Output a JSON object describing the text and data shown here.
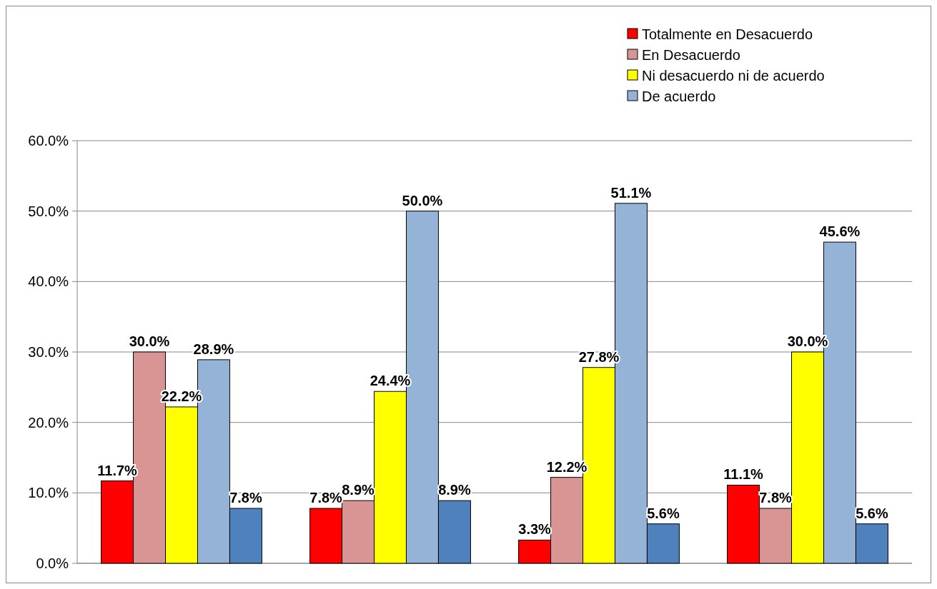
{
  "chart_data": {
    "type": "bar",
    "categories": [
      null,
      null,
      null,
      null
    ],
    "series": [
      {
        "name": "Totalmente en Desacuerdo",
        "color": "#ff0000",
        "values": [
          11.7,
          7.8,
          3.3,
          11.1
        ],
        "value_labels": [
          "11.7%",
          "7.8%",
          "3.3%",
          "11.1%"
        ]
      },
      {
        "name": "En Desacuerdo",
        "color": "#d99594",
        "values": [
          30.0,
          8.9,
          12.2,
          7.8
        ],
        "value_labels": [
          "30.0%",
          "8.9%",
          "12.2%",
          "7.8%"
        ]
      },
      {
        "name": "Ni desacuerdo ni de acuerdo",
        "color": "#ffff00",
        "values": [
          22.2,
          24.4,
          27.8,
          30.0
        ],
        "value_labels": [
          "22.2%",
          "24.4%",
          "27.8%",
          "30.0%"
        ]
      },
      {
        "name": "De acuerdo",
        "color": "#95b3d7",
        "values": [
          28.9,
          50.0,
          51.1,
          45.6
        ],
        "value_labels": [
          "28.9%",
          "50.0%",
          "51.1%",
          "45.6%"
        ]
      },
      {
        "color": "#4f81bd",
        "values": [
          7.8,
          8.9,
          5.6,
          5.6
        ],
        "value_labels": [
          "7.8%",
          "8.9%",
          "5.6%",
          "5.6%"
        ]
      }
    ],
    "ylim": [
      0,
      60
    ],
    "yticks": [
      {
        "value": 0,
        "label": "0.0%"
      },
      {
        "value": 10,
        "label": "10.0%"
      },
      {
        "value": 20,
        "label": "20.0%"
      },
      {
        "value": 30,
        "label": "30.0%"
      },
      {
        "value": 40,
        "label": "40.0%"
      },
      {
        "value": 50,
        "label": "50.0%"
      },
      {
        "value": 60,
        "label": "60.0%"
      }
    ],
    "grid": "y",
    "legend": "top right"
  }
}
